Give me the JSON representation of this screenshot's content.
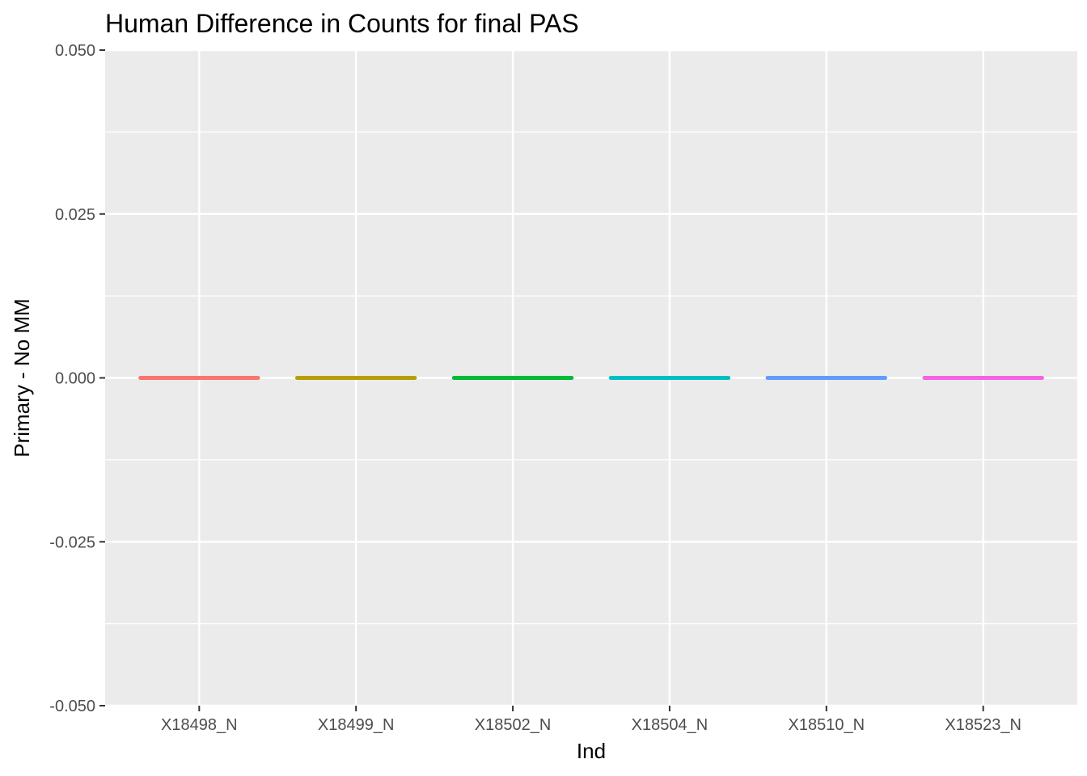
{
  "chart_data": {
    "type": "boxplot",
    "title": "Human Difference in Counts for final PAS",
    "xlabel": "Ind",
    "ylabel": "Primary - No MM",
    "ylim": [
      -0.05,
      0.05
    ],
    "y_ticks": [
      -0.05,
      -0.025,
      0.0,
      0.025,
      0.05
    ],
    "y_tick_labels": [
      "-0.050",
      "-0.025",
      "0.000",
      "0.025",
      "0.050"
    ],
    "grid": true,
    "legend": "none",
    "categories": [
      "X18498_N",
      "X18499_N",
      "X18502_N",
      "X18504_N",
      "X18510_N",
      "X18523_N"
    ],
    "series": [
      {
        "values": [
          0,
          0,
          0,
          0,
          0,
          0
        ]
      }
    ],
    "colors": [
      "#F8766D",
      "#B79F00",
      "#00BA38",
      "#00BFC4",
      "#619CFF",
      "#F564E3"
    ],
    "background_color": "#EBEBEB",
    "grid_color": "#FFFFFF"
  }
}
